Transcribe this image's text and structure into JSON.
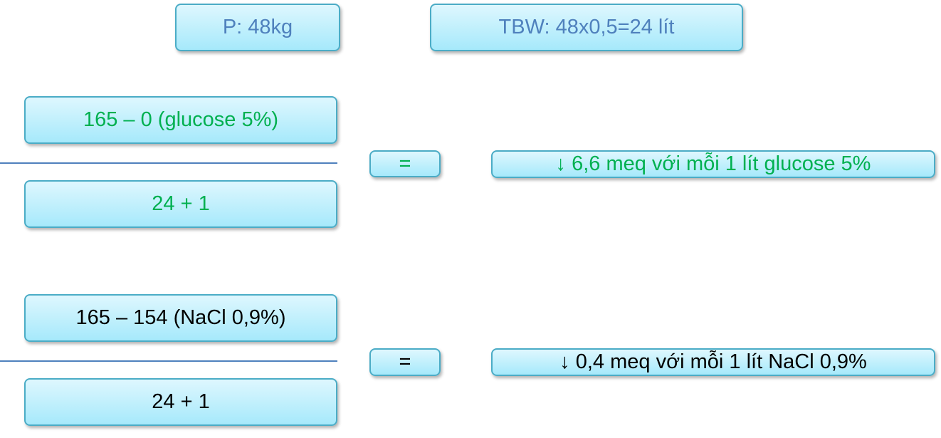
{
  "header": {
    "weight": "P: 48kg",
    "tbw": "TBW: 48x0,5=24 lít"
  },
  "glucose": {
    "numerator": "165 – 0 (glucose 5%)",
    "denominator": "24 + 1",
    "equals": "=",
    "result": "↓ 6,6 meq với mỗi 1 lít glucose 5%"
  },
  "nacl": {
    "numerator": "165 – 154 (NaCl 0,9%)",
    "denominator": "24 + 1",
    "equals": "=",
    "result": "↓ 0,4 meq với mỗi 1 lít NaCl 0,9%"
  },
  "colors": {
    "green": "#00b050",
    "blue": "#4f81bd",
    "box_border": "#4bacc6"
  }
}
